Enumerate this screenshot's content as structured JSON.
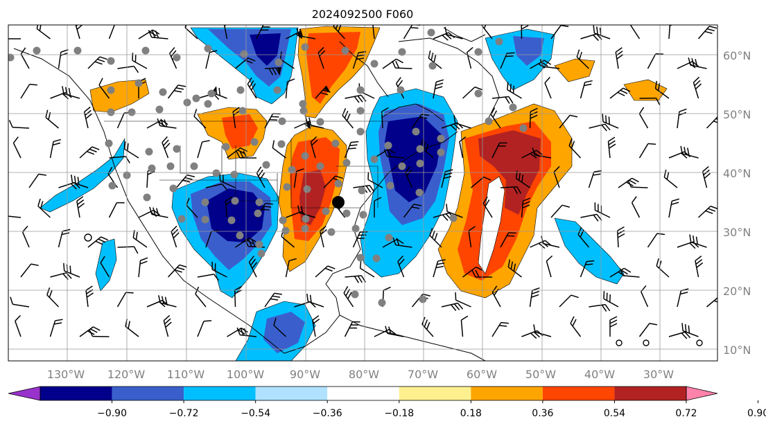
{
  "title": "2024092500 F060",
  "map": {
    "lon_labels": [
      "130°W",
      "120°W",
      "110°W",
      "100°W",
      "90°W",
      "80°W",
      "70°W",
      "60°W",
      "50°W",
      "40°W",
      "30°W"
    ],
    "lat_labels": [
      "60°N",
      "50°N",
      "40°N",
      "30°N",
      "20°N",
      "10°N"
    ]
  },
  "colorbar": {
    "tick_labels": [
      "−0.90",
      "−0.72",
      "−0.54",
      "−0.36",
      "−0.18",
      "0.18",
      "0.36",
      "0.54",
      "0.72",
      "0.90"
    ],
    "colors": [
      "#9932cc",
      "#00008b",
      "#3a5fcd",
      "#00bfff",
      "#b0e2ff",
      "#ffffff",
      "#fff08f",
      "#ffa500",
      "#ff4500",
      "#b22222",
      "#ff82ab"
    ]
  },
  "palette": {
    "deep_blue": "#00008b",
    "mid_blue": "#3a5fcd",
    "light_blue": "#00bfff",
    "orange": "#ffa500",
    "red_orange": "#ff4500",
    "dark_red": "#b22222",
    "station_dot": "#808080",
    "label_gray": "#808080"
  }
}
